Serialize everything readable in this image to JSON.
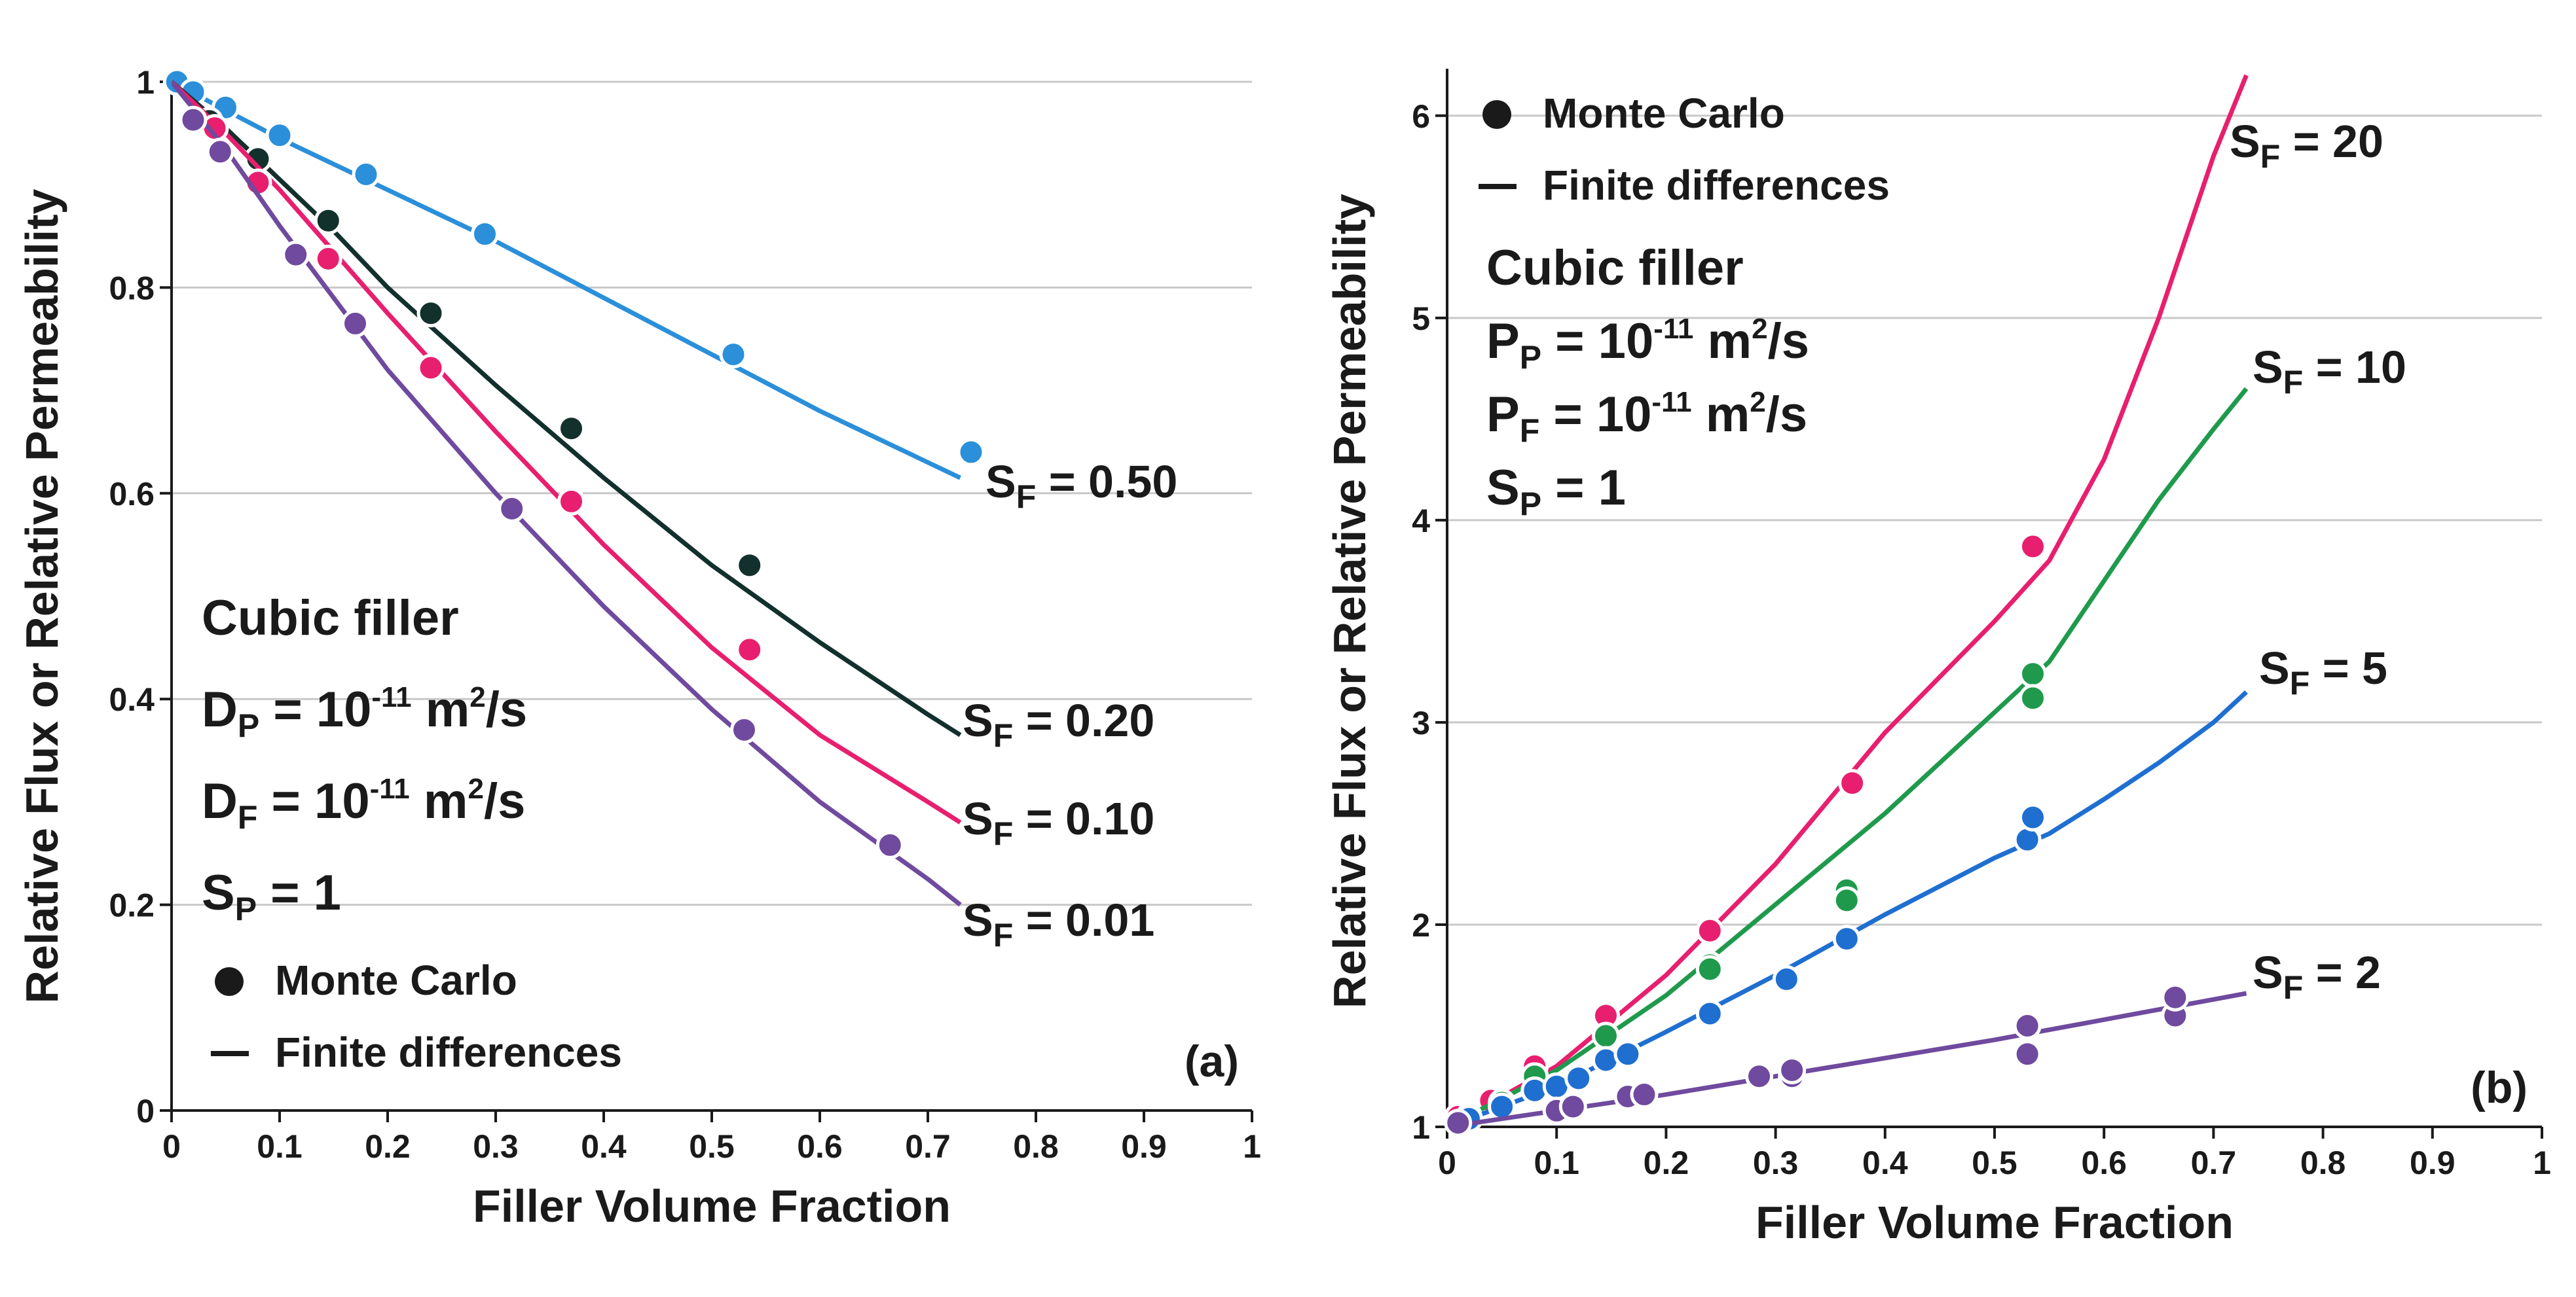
{
  "chart_data": [
    {
      "type": "line+scatter",
      "panel_label": "(a)",
      "xlabel": "Filler Volume Fraction",
      "ylabel": "Relative Flux or Relative Permeability",
      "xlim": [
        0,
        1
      ],
      "ylim": [
        0,
        1
      ],
      "x_ticks": [
        "0",
        "0.1",
        "0.2",
        "0.3",
        "0.4",
        "0.5",
        "0.6",
        "0.7",
        "0.8",
        "0.9",
        "1"
      ],
      "y_ticks": [
        "0",
        "0.2",
        "0.4",
        "0.6",
        "0.8",
        "1"
      ],
      "grid": "horizontal",
      "annotation": {
        "title": "Cubic filler",
        "line1": {
          "main": "D",
          "sub": "P",
          "mid": " = 10",
          "sup": "-11",
          "tail": " m",
          "sup2": "2",
          "tail2": "/s"
        },
        "line2": {
          "main": "D",
          "sub": "F",
          "mid": " = 10",
          "sup": "-11",
          "tail": " m",
          "sup2": "2",
          "tail2": "/s"
        },
        "line3": {
          "main": "S",
          "sub": "P",
          "tail": " = 1"
        }
      },
      "legend": {
        "markers": "Monte Carlo",
        "lines": "Finite differences",
        "placement": "bottom-left"
      },
      "series": [
        {
          "name": "S_F = 0.50",
          "label_main": "S",
          "label_sub": "F",
          "label_value": " = 0.50",
          "color": "#2b8fd9",
          "line": [
            [
              0,
              1
            ],
            [
              0.1,
              0.945
            ],
            [
              0.2,
              0.895
            ],
            [
              0.3,
              0.845
            ],
            [
              0.4,
              0.79
            ],
            [
              0.5,
              0.735
            ],
            [
              0.6,
              0.68
            ],
            [
              0.7,
              0.63
            ],
            [
              0.73,
              0.615
            ]
          ],
          "points": [
            [
              0.005,
              1.0
            ],
            [
              0.02,
              0.99
            ],
            [
              0.05,
              0.975
            ],
            [
              0.1,
              0.948
            ],
            [
              0.18,
              0.91
            ],
            [
              0.29,
              0.852
            ],
            [
              0.52,
              0.735
            ],
            [
              0.74,
              0.64
            ]
          ]
        },
        {
          "name": "S_F = 0.20",
          "label_main": "S",
          "label_sub": "F",
          "label_value": " = 0.20",
          "color": "#12302c",
          "line": [
            [
              0,
              1
            ],
            [
              0.05,
              0.955
            ],
            [
              0.1,
              0.905
            ],
            [
              0.15,
              0.855
            ],
            [
              0.2,
              0.8
            ],
            [
              0.3,
              0.705
            ],
            [
              0.4,
              0.615
            ],
            [
              0.5,
              0.53
            ],
            [
              0.6,
              0.455
            ],
            [
              0.7,
              0.385
            ],
            [
              0.73,
              0.365
            ]
          ],
          "points": [
            [
              0.035,
              0.962
            ],
            [
              0.08,
              0.925
            ],
            [
              0.145,
              0.865
            ],
            [
              0.24,
              0.775
            ],
            [
              0.37,
              0.663
            ],
            [
              0.535,
              0.53
            ]
          ]
        },
        {
          "name": "S_F = 0.10",
          "label_main": "S",
          "label_sub": "F",
          "label_value": " = 0.10",
          "color": "#e81f6e",
          "line": [
            [
              0,
              1
            ],
            [
              0.05,
              0.95
            ],
            [
              0.1,
              0.895
            ],
            [
              0.15,
              0.835
            ],
            [
              0.2,
              0.775
            ],
            [
              0.3,
              0.66
            ],
            [
              0.4,
              0.55
            ],
            [
              0.5,
              0.45
            ],
            [
              0.6,
              0.365
            ],
            [
              0.7,
              0.3
            ],
            [
              0.73,
              0.28
            ]
          ],
          "points": [
            [
              0.04,
              0.955
            ],
            [
              0.08,
              0.902
            ],
            [
              0.145,
              0.828
            ],
            [
              0.24,
              0.722
            ],
            [
              0.37,
              0.592
            ],
            [
              0.535,
              0.448
            ]
          ]
        },
        {
          "name": "S_F = 0.01",
          "label_main": "S",
          "label_sub": "F",
          "label_value": " = 0.01",
          "color": "#6f4a9e",
          "line": [
            [
              0,
              1
            ],
            [
              0.05,
              0.935
            ],
            [
              0.1,
              0.86
            ],
            [
              0.15,
              0.79
            ],
            [
              0.2,
              0.72
            ],
            [
              0.3,
              0.6
            ],
            [
              0.4,
              0.49
            ],
            [
              0.5,
              0.39
            ],
            [
              0.6,
              0.3
            ],
            [
              0.7,
              0.225
            ],
            [
              0.73,
              0.2
            ]
          ],
          "points": [
            [
              0.02,
              0.963
            ],
            [
              0.045,
              0.932
            ],
            [
              0.115,
              0.832
            ],
            [
              0.17,
              0.765
            ],
            [
              0.315,
              0.585
            ],
            [
              0.53,
              0.37
            ],
            [
              0.665,
              0.258
            ]
          ]
        }
      ]
    },
    {
      "type": "line+scatter",
      "panel_label": "(b)",
      "xlabel": "Filler Volume Fraction",
      "ylabel": "Relative Flux or Relative Permeability",
      "xlim": [
        0,
        1
      ],
      "ylim": [
        1,
        6.2
      ],
      "x_ticks": [
        "0",
        "0.1",
        "0.2",
        "0.3",
        "0.4",
        "0.5",
        "0.6",
        "0.7",
        "0.8",
        "0.9",
        "1"
      ],
      "y_ticks": [
        "1",
        "2",
        "3",
        "4",
        "5",
        "6"
      ],
      "grid": "horizontal",
      "legend": {
        "markers": "Monte Carlo",
        "lines": "Finite differences",
        "placement": "top-left"
      },
      "annotation": {
        "title": "Cubic filler",
        "line1": {
          "main": "P",
          "sub": "P",
          "mid": " = 10",
          "sup": "-11",
          "tail": " m",
          "sup2": "2",
          "tail2": "/s"
        },
        "line2": {
          "main": "P",
          "sub": "F",
          "mid": " = 10",
          "sup": "-11",
          "tail": " m",
          "sup2": "2",
          "tail2": "/s"
        },
        "line3": {
          "main": "S",
          "sub": "P",
          "tail": " = 1"
        }
      },
      "series": [
        {
          "name": "S_F = 20",
          "label_main": "S",
          "label_sub": "F",
          "label_value": " = 20",
          "color": "#e81f6e",
          "line": [
            [
              0,
              1
            ],
            [
              0.1,
              1.3
            ],
            [
              0.2,
              1.75
            ],
            [
              0.3,
              2.3
            ],
            [
              0.4,
              2.95
            ],
            [
              0.5,
              3.5
            ],
            [
              0.55,
              3.8
            ],
            [
              0.6,
              4.3
            ],
            [
              0.65,
              5.0
            ],
            [
              0.7,
              5.8
            ],
            [
              0.73,
              6.2
            ]
          ],
          "points": [
            [
              0.01,
              1.05
            ],
            [
              0.04,
              1.13
            ],
            [
              0.08,
              1.3
            ],
            [
              0.145,
              1.55
            ],
            [
              0.24,
              1.97
            ],
            [
              0.37,
              2.7
            ],
            [
              0.535,
              3.87
            ]
          ]
        },
        {
          "name": "S_F = 10",
          "label_main": "S",
          "label_sub": "F",
          "label_value": " = 10",
          "color": "#1f9a4c",
          "line": [
            [
              0,
              1
            ],
            [
              0.1,
              1.28
            ],
            [
              0.2,
              1.65
            ],
            [
              0.3,
              2.1
            ],
            [
              0.4,
              2.55
            ],
            [
              0.5,
              3.05
            ],
            [
              0.55,
              3.3
            ],
            [
              0.6,
              3.7
            ],
            [
              0.65,
              4.1
            ],
            [
              0.7,
              4.45
            ],
            [
              0.73,
              4.65
            ]
          ],
          "points": [
            [
              0.02,
              1.05
            ],
            [
              0.05,
              1.12
            ],
            [
              0.08,
              1.25
            ],
            [
              0.145,
              1.45
            ],
            [
              0.24,
              1.8
            ],
            [
              0.24,
              1.78
            ],
            [
              0.365,
              2.17
            ],
            [
              0.365,
              2.12
            ],
            [
              0.535,
              3.24
            ],
            [
              0.535,
              3.12
            ]
          ]
        },
        {
          "name": "S_F = 5",
          "label_main": "S",
          "label_sub": "F",
          "label_value": " = 5",
          "color": "#1f6fd1",
          "line": [
            [
              0,
              1
            ],
            [
              0.1,
              1.2
            ],
            [
              0.2,
              1.47
            ],
            [
              0.3,
              1.75
            ],
            [
              0.4,
              2.05
            ],
            [
              0.5,
              2.33
            ],
            [
              0.55,
              2.45
            ],
            [
              0.6,
              2.62
            ],
            [
              0.65,
              2.8
            ],
            [
              0.7,
              3.0
            ],
            [
              0.73,
              3.15
            ]
          ],
          "points": [
            [
              0.02,
              1.04
            ],
            [
              0.05,
              1.1
            ],
            [
              0.08,
              1.18
            ],
            [
              0.1,
              1.2
            ],
            [
              0.12,
              1.24
            ],
            [
              0.145,
              1.33
            ],
            [
              0.165,
              1.36
            ],
            [
              0.24,
              1.56
            ],
            [
              0.31,
              1.73
            ],
            [
              0.365,
              1.93
            ],
            [
              0.53,
              2.42
            ],
            [
              0.535,
              2.53
            ]
          ]
        },
        {
          "name": "S_F = 2",
          "label_main": "S",
          "label_sub": "F",
          "label_value": " = 2",
          "color": "#6f4a9e",
          "line": [
            [
              0,
              1
            ],
            [
              0.1,
              1.08
            ],
            [
              0.2,
              1.16
            ],
            [
              0.3,
              1.25
            ],
            [
              0.4,
              1.34
            ],
            [
              0.5,
              1.43
            ],
            [
              0.6,
              1.53
            ],
            [
              0.7,
              1.63
            ],
            [
              0.73,
              1.66
            ]
          ],
          "points": [
            [
              0.01,
              1.02
            ],
            [
              0.1,
              1.08
            ],
            [
              0.115,
              1.1
            ],
            [
              0.165,
              1.15
            ],
            [
              0.18,
              1.16
            ],
            [
              0.285,
              1.25
            ],
            [
              0.315,
              1.25
            ],
            [
              0.315,
              1.28
            ],
            [
              0.53,
              1.36
            ],
            [
              0.53,
              1.5
            ],
            [
              0.665,
              1.55
            ],
            [
              0.665,
              1.64
            ]
          ]
        }
      ]
    }
  ]
}
